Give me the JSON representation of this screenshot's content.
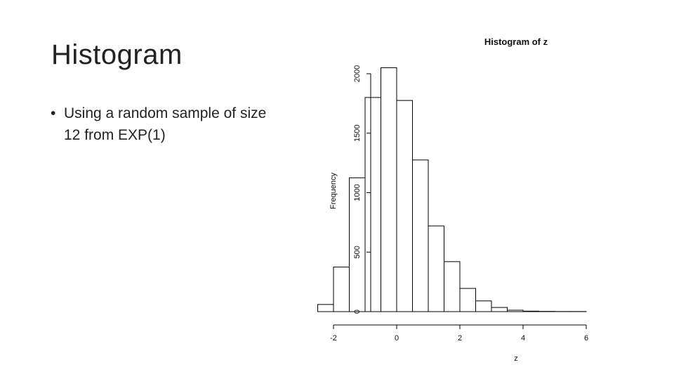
{
  "slide": {
    "title": "Histogram",
    "bullets": [
      "Using a random sample of size 12 from EXP(1)"
    ]
  },
  "chart_data": {
    "type": "bar",
    "title": "Histogram of z",
    "xlabel": "z",
    "ylabel": "Frequency",
    "xlim": [
      -2.5,
      6
    ],
    "ylim": [
      0,
      2000
    ],
    "x_ticks": [
      -2,
      0,
      2,
      4,
      6
    ],
    "y_ticks": [
      0,
      500,
      1000,
      1500,
      2000
    ],
    "bins": [
      {
        "x0": -2.5,
        "x1": -2.0,
        "count": 60
      },
      {
        "x0": -2.0,
        "x1": -1.5,
        "count": 375
      },
      {
        "x0": -1.5,
        "x1": -1.0,
        "count": 1125
      },
      {
        "x0": -1.0,
        "x1": -0.5,
        "count": 1800
      },
      {
        "x0": -0.5,
        "x1": 0.0,
        "count": 2050
      },
      {
        "x0": 0.0,
        "x1": 0.5,
        "count": 1775
      },
      {
        "x0": 0.5,
        "x1": 1.0,
        "count": 1275
      },
      {
        "x0": 1.0,
        "x1": 1.5,
        "count": 720
      },
      {
        "x0": 1.5,
        "x1": 2.0,
        "count": 420
      },
      {
        "x0": 2.0,
        "x1": 2.5,
        "count": 195
      },
      {
        "x0": 2.5,
        "x1": 3.0,
        "count": 90
      },
      {
        "x0": 3.0,
        "x1": 3.5,
        "count": 35
      },
      {
        "x0": 3.5,
        "x1": 4.0,
        "count": 12
      },
      {
        "x0": 4.0,
        "x1": 4.5,
        "count": 4
      },
      {
        "x0": 4.5,
        "x1": 5.0,
        "count": 2
      },
      {
        "x0": 5.0,
        "x1": 5.5,
        "count": 1
      },
      {
        "x0": 5.5,
        "x1": 6.0,
        "count": 1
      }
    ],
    "grid": false,
    "legend": "none"
  }
}
